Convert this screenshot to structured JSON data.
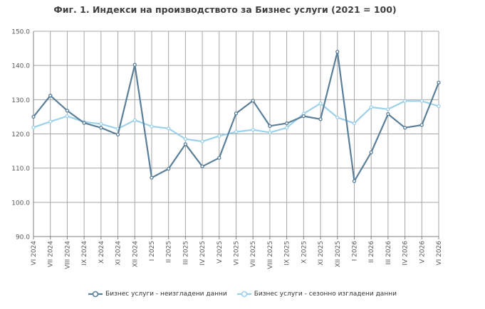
{
  "chart_data": {
    "type": "line",
    "title": "Фиг. 1. Индекси на производството за Бизнес услуги (2021 = 100)",
    "xlabel": "",
    "ylabel": "",
    "ylim": [
      90,
      150
    ],
    "yticks": [
      "90.0",
      "100.0",
      "110.0",
      "120.0",
      "130.0",
      "140.0",
      "150.0"
    ],
    "grid": true,
    "legend_position": "bottom",
    "categories": [
      "VI 2024",
      "VII 2024",
      "VIII 2024",
      "IX 2024",
      "X 2024",
      "XI 2024",
      "XII 2024",
      "I 2025",
      "II 2025",
      "III 2025",
      "IV 2025",
      "V 2025",
      "VI 2025",
      "VII 2025",
      "VIII 2025",
      "IX 2025",
      "X 2025",
      "XI 2025",
      "XII 2025",
      "I 2026",
      "II 2026",
      "III 2026",
      "IV 2026",
      "V 2026",
      "VI 2026"
    ],
    "series": [
      {
        "name": "Бизнес услуги - неизгладени данни",
        "color": "#5b7f99",
        "values": [
          125.0,
          131.2,
          126.8,
          123.2,
          121.8,
          119.8,
          140.2,
          107.2,
          109.8,
          117.0,
          110.5,
          113.0,
          126.0,
          129.7,
          122.3,
          123.1,
          125.2,
          124.3,
          144.0,
          106.2,
          114.6,
          125.8,
          121.8,
          122.6,
          135.0
        ]
      },
      {
        "name": "Бизнес услуги - сезонно изгладени данни",
        "color": "#9dd1ea",
        "values": [
          121.9,
          123.6,
          125.2,
          123.5,
          122.9,
          121.5,
          124.0,
          122.2,
          121.6,
          118.5,
          117.8,
          119.4,
          120.6,
          121.2,
          120.4,
          121.8,
          125.9,
          128.9,
          124.8,
          123.1,
          127.8,
          127.2,
          129.6,
          129.6,
          128.1
        ]
      }
    ]
  }
}
